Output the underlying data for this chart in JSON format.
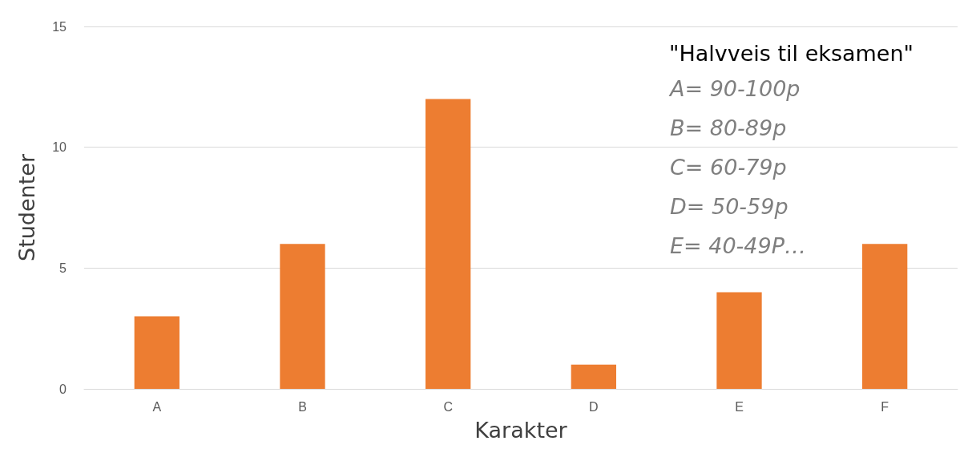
{
  "chart_data": {
    "type": "bar",
    "title": "\"Halvveis til eksamen\"",
    "xlabel": "Karakter",
    "ylabel": "Studenter",
    "categories": [
      "A",
      "B",
      "C",
      "D",
      "E",
      "F"
    ],
    "values": [
      3,
      6,
      12,
      1,
      4,
      6
    ],
    "color": "#ed7d31",
    "ylim": [
      0,
      15
    ],
    "yticks": [
      0,
      5,
      10,
      15
    ],
    "grid": "y",
    "annotations": [
      "A= 90-100p",
      "B= 80-89p",
      "C= 60-79p",
      "D= 50-59p",
      "E= 40-49P…"
    ]
  }
}
